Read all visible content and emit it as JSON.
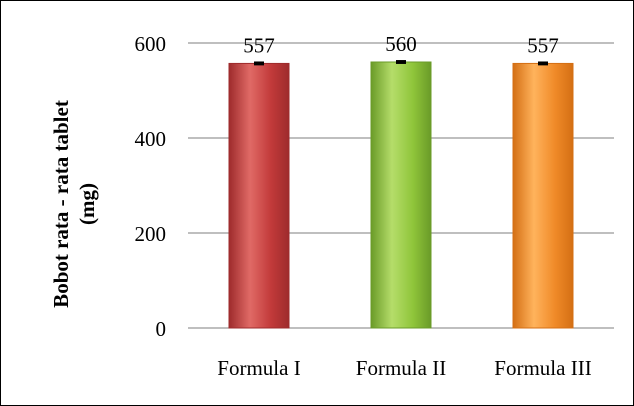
{
  "chart_data": {
    "type": "bar",
    "categories": [
      "Formula I",
      "Formula II",
      "Formula III"
    ],
    "values": [
      557,
      560,
      557
    ],
    "data_labels": [
      "557",
      "560",
      "557"
    ],
    "error": [
      2,
      2,
      2
    ],
    "title": "",
    "xlabel": "",
    "ylabel_lines": [
      "Bobot rata - rata tablet",
      "(mg)"
    ],
    "ylim": [
      0,
      600
    ],
    "yticks": [
      0,
      200,
      400,
      600
    ],
    "ytick_labels": [
      "0",
      "200",
      "400",
      "600"
    ],
    "grid": true,
    "legend": "none",
    "colors": {
      "bars": [
        "#c23a3a",
        "#8fc53a",
        "#f08a28"
      ],
      "bar_light": [
        "#e06a66",
        "#b5dd6a",
        "#ffb35c"
      ],
      "bar_dark": [
        "#9e2b2c",
        "#6a9b28",
        "#d46f14"
      ],
      "grid": "#7f7f7f",
      "axis": "#000000"
    }
  }
}
